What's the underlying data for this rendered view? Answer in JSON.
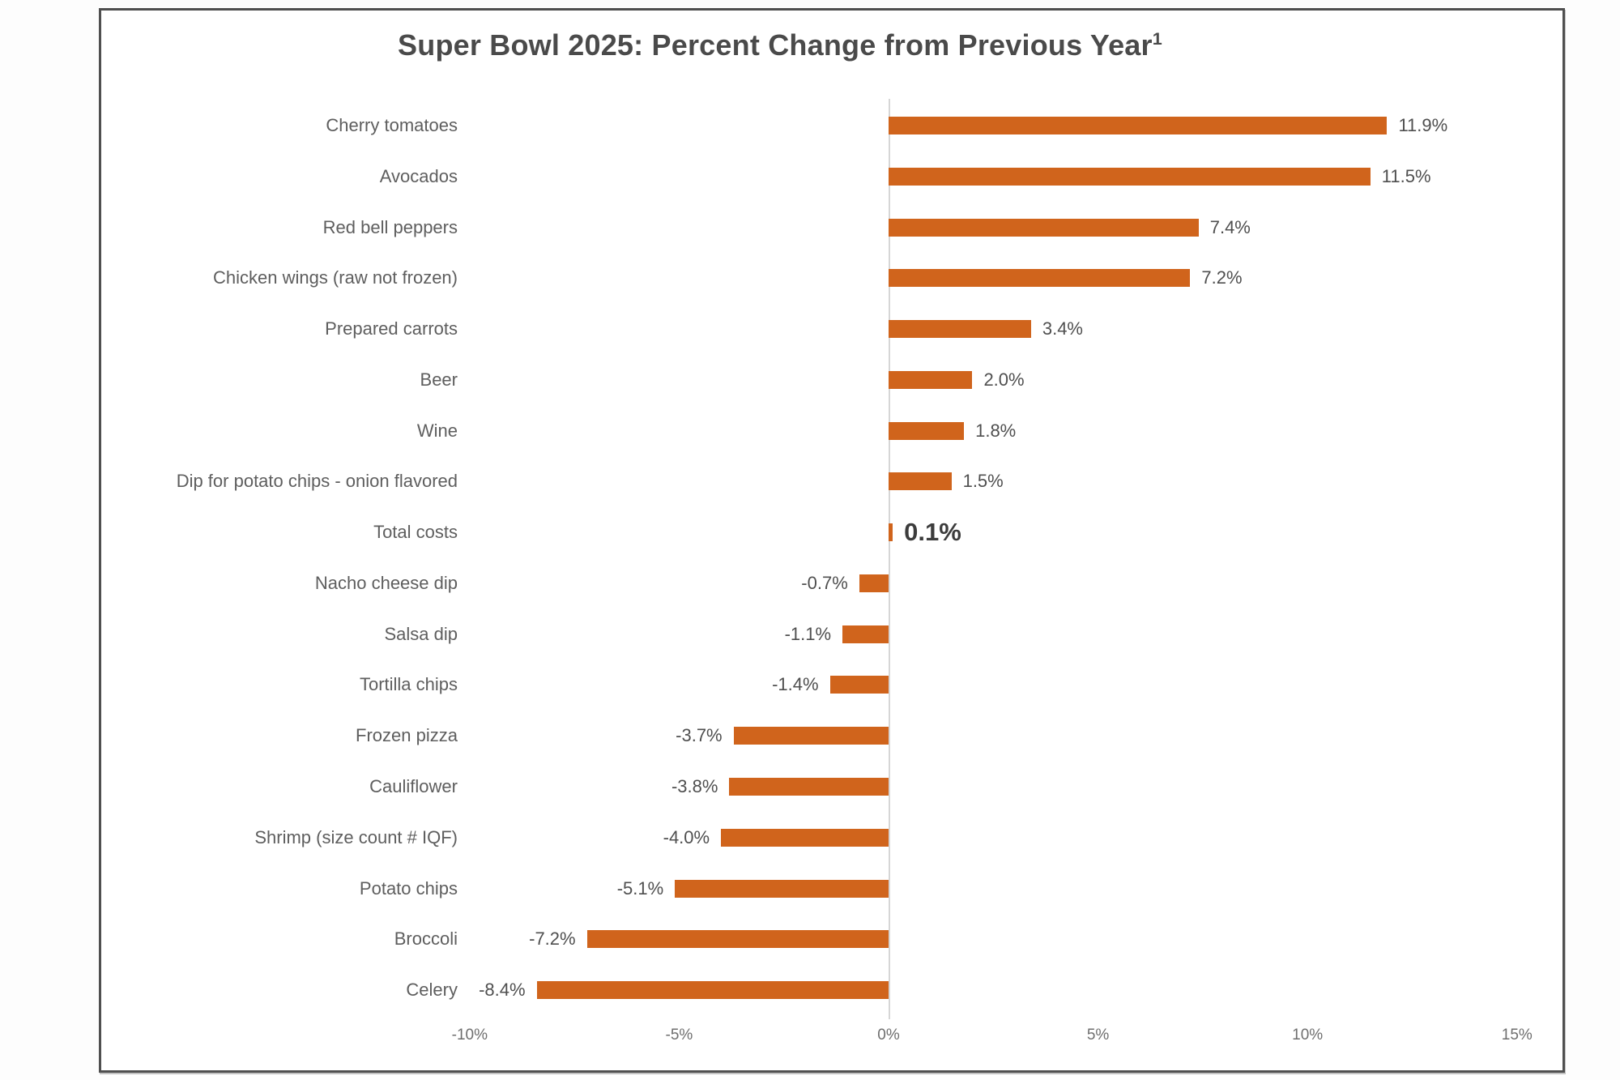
{
  "chart_data": {
    "type": "bar",
    "orientation": "horizontal",
    "title": "Super Bowl 2025: Percent Change from Previous Year",
    "title_superscript": "1",
    "categories": [
      "Cherry tomatoes",
      "Avocados",
      "Red bell peppers",
      "Chicken wings (raw not frozen)",
      "Prepared carrots",
      "Beer",
      "Wine",
      "Dip for potato chips - onion flavored",
      "Total costs",
      "Nacho cheese dip",
      "Salsa dip",
      "Tortilla chips",
      "Frozen pizza",
      "Cauliflower",
      "Shrimp (size count # IQF)",
      "Potato chips",
      "Broccoli",
      "Celery"
    ],
    "values": [
      11.9,
      11.5,
      7.4,
      7.2,
      3.4,
      2.0,
      1.8,
      1.5,
      0.1,
      -0.7,
      -1.1,
      -1.4,
      -3.7,
      -3.8,
      -4.0,
      -5.1,
      -7.2,
      -8.4
    ],
    "value_labels": [
      "11.9%",
      "11.5%",
      "7.4%",
      "7.2%",
      "3.4%",
      "2.0%",
      "1.8%",
      "1.5%",
      "0.1%",
      "-0.7%",
      "-1.1%",
      "-1.4%",
      "-3.7%",
      "-3.8%",
      "-4.0%",
      "-5.1%",
      "-7.2%",
      "-8.4%"
    ],
    "bold_value_category": "Total costs",
    "bar_color": "#D0641C",
    "x_axis": {
      "ticks": [
        "-10%",
        "-5%",
        "0%",
        "5%",
        "10%",
        "15%"
      ],
      "tick_values": [
        -10,
        -5,
        0,
        5,
        10,
        15
      ],
      "min": -10,
      "max": 15
    },
    "ylabel": "",
    "xlabel": "",
    "legend": "none",
    "grid": "zero-line-only"
  },
  "colors": {
    "bar": "#D0641C",
    "title_text": "#4a4a4a",
    "category_text": "#5e5e5e",
    "value_text": "#4f4f4f",
    "bold_value_text": "#3c3c3c",
    "tick_text": "#6e6e6e",
    "zero_line": "#d6d6d6",
    "card_border": "#4f4f4f",
    "card_background": "#ffffff"
  }
}
